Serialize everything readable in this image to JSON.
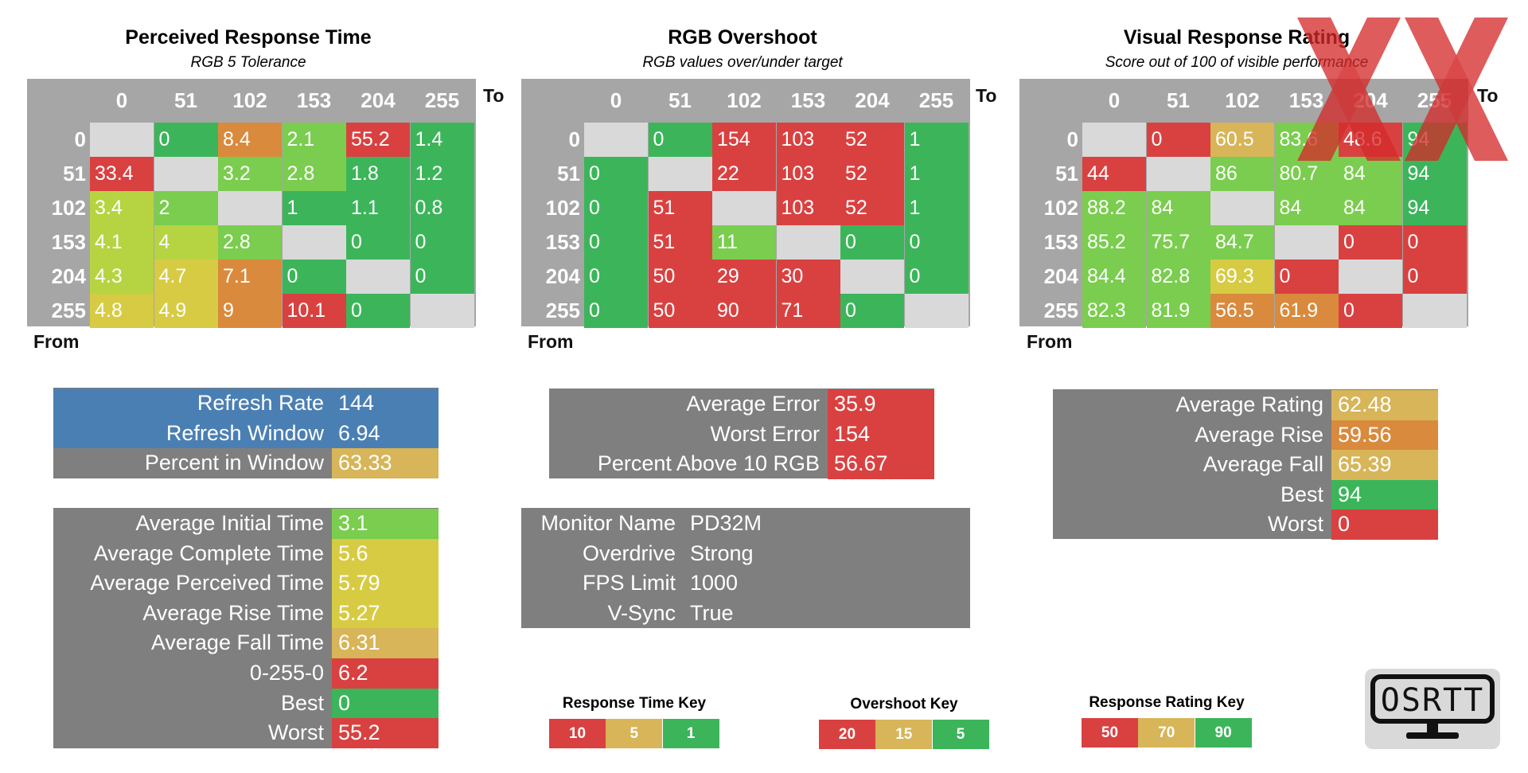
{
  "colors": {
    "green": "#3cb55a",
    "lightgreen": "#7acd4e",
    "yellowgreen": "#b6d441",
    "yellow": "#d7cb44",
    "gold": "#d7b558",
    "orange": "#d98a3c",
    "red": "#d94141",
    "grey": "#7f7f7f",
    "diag": "#d9d9d9",
    "blue": "#4a7fb3"
  },
  "chart_data": [
    {
      "type": "heatmap",
      "title": "Perceived Response Time",
      "subtitle": "RGB 5 Tolerance",
      "xlabel": "To",
      "ylabel": "From",
      "x": [
        "0",
        "51",
        "102",
        "153",
        "204",
        "255"
      ],
      "y": [
        "0",
        "51",
        "102",
        "153",
        "204",
        "255"
      ],
      "values": [
        [
          "",
          "0",
          "8.4",
          "2.1",
          "55.2",
          "1.4"
        ],
        [
          "33.4",
          "",
          "3.2",
          "2.8",
          "1.8",
          "1.2"
        ],
        [
          "3.4",
          "2",
          "",
          "1",
          "1.1",
          "0.8"
        ],
        [
          "4.1",
          "4",
          "2.8",
          "",
          "0",
          "0"
        ],
        [
          "4.3",
          "4.7",
          "7.1",
          "0",
          "",
          "0"
        ],
        [
          "4.8",
          "4.9",
          "9",
          "10.1",
          "0",
          ""
        ]
      ],
      "cell_colors": [
        [
          "diag",
          "green",
          "orange",
          "lightgreen",
          "red",
          "green"
        ],
        [
          "red",
          "diag",
          "lightgreen",
          "lightgreen",
          "green",
          "green"
        ],
        [
          "yellowgreen",
          "lightgreen",
          "diag",
          "green",
          "green",
          "green"
        ],
        [
          "yellowgreen",
          "yellowgreen",
          "lightgreen",
          "diag",
          "green",
          "green"
        ],
        [
          "yellowgreen",
          "yellow",
          "orange",
          "green",
          "diag",
          "green"
        ],
        [
          "yellow",
          "yellow",
          "orange",
          "red",
          "green",
          "diag"
        ]
      ]
    },
    {
      "type": "heatmap",
      "title": "RGB Overshoot",
      "subtitle": "RGB values over/under target",
      "xlabel": "To",
      "ylabel": "From",
      "x": [
        "0",
        "51",
        "102",
        "153",
        "204",
        "255"
      ],
      "y": [
        "0",
        "51",
        "102",
        "153",
        "204",
        "255"
      ],
      "values": [
        [
          "",
          "0",
          "154",
          "103",
          "52",
          "1"
        ],
        [
          "0",
          "",
          "22",
          "103",
          "52",
          "1"
        ],
        [
          "0",
          "51",
          "",
          "103",
          "52",
          "1"
        ],
        [
          "0",
          "51",
          "11",
          "",
          "0",
          "0"
        ],
        [
          "0",
          "50",
          "29",
          "30",
          "",
          "0"
        ],
        [
          "0",
          "50",
          "90",
          "71",
          "0",
          ""
        ]
      ],
      "cell_colors": [
        [
          "diag",
          "green",
          "red",
          "red",
          "red",
          "green"
        ],
        [
          "green",
          "diag",
          "red",
          "red",
          "red",
          "green"
        ],
        [
          "green",
          "red",
          "diag",
          "red",
          "red",
          "green"
        ],
        [
          "green",
          "red",
          "lightgreen",
          "diag",
          "green",
          "green"
        ],
        [
          "green",
          "red",
          "red",
          "red",
          "diag",
          "green"
        ],
        [
          "green",
          "red",
          "red",
          "red",
          "green",
          "diag"
        ]
      ]
    },
    {
      "type": "heatmap",
      "title": "Visual Response Rating",
      "subtitle": "Score out of 100 of visible performance",
      "xlabel": "To",
      "ylabel": "From",
      "x": [
        "0",
        "51",
        "102",
        "153",
        "204",
        "255"
      ],
      "y": [
        "0",
        "51",
        "102",
        "153",
        "204",
        "255"
      ],
      "values": [
        [
          "",
          "0",
          "60.5",
          "83.6",
          "48.6",
          "94"
        ],
        [
          "44",
          "",
          "86",
          "80.7",
          "84",
          "94"
        ],
        [
          "88.2",
          "84",
          "",
          "84",
          "84",
          "94"
        ],
        [
          "85.2",
          "75.7",
          "84.7",
          "",
          "0",
          "0"
        ],
        [
          "84.4",
          "82.8",
          "69.3",
          "0",
          "",
          "0"
        ],
        [
          "82.3",
          "81.9",
          "56.5",
          "61.9",
          "0",
          ""
        ]
      ],
      "cell_colors": [
        [
          "diag",
          "red",
          "gold",
          "lightgreen",
          "red",
          "green"
        ],
        [
          "red",
          "diag",
          "lightgreen",
          "lightgreen",
          "lightgreen",
          "green"
        ],
        [
          "lightgreen",
          "lightgreen",
          "diag",
          "lightgreen",
          "lightgreen",
          "green"
        ],
        [
          "lightgreen",
          "lightgreen",
          "lightgreen",
          "diag",
          "red",
          "red"
        ],
        [
          "lightgreen",
          "lightgreen",
          "yellow",
          "red",
          "diag",
          "red"
        ],
        [
          "lightgreen",
          "lightgreen",
          "orange",
          "orange",
          "red",
          "diag"
        ]
      ]
    }
  ],
  "refresh_panel": [
    {
      "label": "Refresh Rate",
      "value": "144",
      "color": "blue",
      "labelColor": "blue"
    },
    {
      "label": "Refresh Window",
      "value": "6.94",
      "color": "blue",
      "labelColor": "blue"
    },
    {
      "label": "Percent in Window",
      "value": "63.33",
      "color": "gold",
      "labelColor": "grey"
    }
  ],
  "time_panel": [
    {
      "label": "Average Initial Time",
      "value": "3.1",
      "color": "lightgreen"
    },
    {
      "label": "Average Complete Time",
      "value": "5.6",
      "color": "yellow"
    },
    {
      "label": "Average Perceived Time",
      "value": "5.79",
      "color": "yellow"
    },
    {
      "label": "Average Rise Time",
      "value": "5.27",
      "color": "yellow"
    },
    {
      "label": "Average Fall Time",
      "value": "6.31",
      "color": "gold"
    },
    {
      "label": "0-255-0",
      "value": "6.2",
      "color": "red"
    },
    {
      "label": "Best",
      "value": "0",
      "color": "green"
    },
    {
      "label": "Worst",
      "value": "55.2",
      "color": "red"
    }
  ],
  "error_panel": [
    {
      "label": "Average Error",
      "value": "35.9",
      "color": "red"
    },
    {
      "label": "Worst Error",
      "value": "154",
      "color": "red"
    },
    {
      "label": "Percent Above 10 RGB",
      "value": "56.67",
      "color": "red"
    }
  ],
  "monitor_panel": [
    {
      "label": "Monitor Name",
      "value": "PD32M"
    },
    {
      "label": "Overdrive",
      "value": "Strong"
    },
    {
      "label": "FPS Limit",
      "value": "1000"
    },
    {
      "label": "V-Sync",
      "value": "True"
    }
  ],
  "rating_panel": [
    {
      "label": "Average Rating",
      "value": "62.48",
      "color": "gold"
    },
    {
      "label": "Average Rise",
      "value": "59.56",
      "color": "orange"
    },
    {
      "label": "Average Fall",
      "value": "65.39",
      "color": "gold"
    },
    {
      "label": "Best",
      "value": "94",
      "color": "green"
    },
    {
      "label": "Worst",
      "value": "0",
      "color": "red"
    }
  ],
  "keys": [
    {
      "title": "Response Time Key",
      "values": [
        "10",
        "5",
        "1"
      ],
      "colors": [
        "red",
        "gold",
        "green"
      ]
    },
    {
      "title": "Overshoot Key",
      "values": [
        "20",
        "15",
        "5"
      ],
      "colors": [
        "red",
        "gold",
        "green"
      ]
    },
    {
      "title": "Response Rating Key",
      "values": [
        "50",
        "70",
        "90"
      ],
      "colors": [
        "red",
        "gold",
        "green"
      ]
    }
  ],
  "logo": {
    "text": "OSRTT"
  }
}
